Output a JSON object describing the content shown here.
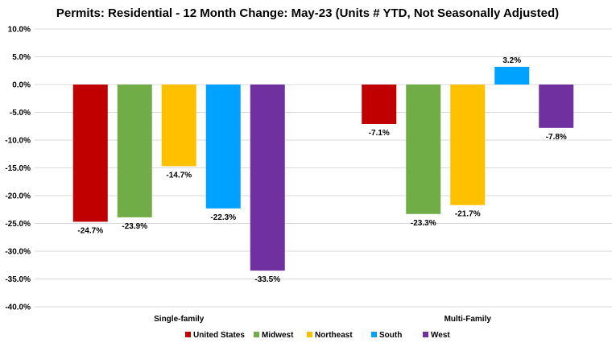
{
  "chart_data": {
    "type": "bar",
    "title": "Permits: Residential - 12 Month Change:  May-23 (Units # YTD, Not Seasonally Adjusted)",
    "categories": [
      "Single-family",
      "Multi-Family"
    ],
    "series": [
      {
        "name": "United States",
        "color": "#C00000",
        "values": [
          -24.7,
          -7.1
        ]
      },
      {
        "name": "Midwest",
        "color": "#70AD47",
        "values": [
          -23.9,
          -23.3
        ]
      },
      {
        "name": "Northeast",
        "color": "#FFC000",
        "values": [
          -14.7,
          -21.7
        ]
      },
      {
        "name": "South",
        "color": "#00A2FF",
        "values": [
          -22.3,
          3.2
        ]
      },
      {
        "name": "West",
        "color": "#7030A0",
        "values": [
          -33.5,
          -7.8
        ]
      }
    ],
    "data_labels": [
      [
        "-24.7%",
        "-7.1%"
      ],
      [
        "-23.9%",
        "-23.3%"
      ],
      [
        "-14.7%",
        "-21.7%"
      ],
      [
        "-22.3%",
        "3.2%"
      ],
      [
        "-33.5%",
        "-7.8%"
      ]
    ],
    "ylim": [
      -40,
      10
    ],
    "yticks": [
      10,
      5,
      0,
      -5,
      -10,
      -15,
      -20,
      -25,
      -30,
      -35,
      -40
    ],
    "ytick_labels": [
      "10.0%",
      "5.0%",
      "0.0%",
      "-5.0%",
      "-10.0%",
      "-15.0%",
      "-20.0%",
      "-25.0%",
      "-30.0%",
      "-35.0%",
      "-40.0%"
    ],
    "grid": true,
    "legend_position": "bottom",
    "gridline_color": "#D9D9D9"
  }
}
